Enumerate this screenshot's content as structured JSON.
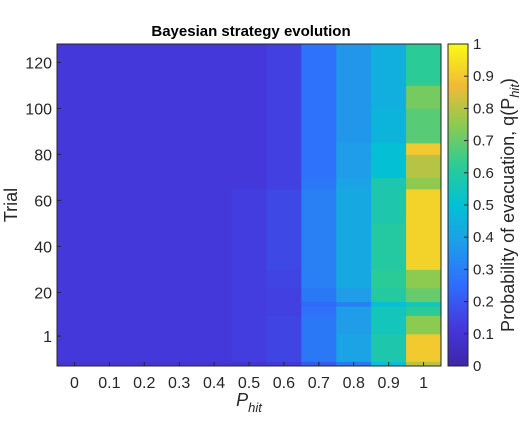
{
  "chart_data": {
    "type": "heatmap",
    "title": "Bayesian strategy evolution",
    "xlabel": "P",
    "xlabel_sub": "hit",
    "ylabel": "Trial",
    "colorbar_label": "Probability of evacuation, q(P",
    "colorbar_label_sub": "hit",
    "colorbar_label_close": ")",
    "colormap": "parula",
    "clim": [
      0,
      1
    ],
    "colorbar_ticks": [
      "0",
      "0.1",
      "0.2",
      "0.3",
      "0.4",
      "0.5",
      "0.6",
      "0.7",
      "0.8",
      "0.9",
      "1"
    ],
    "x_tick_labels": [
      "0",
      "0.1",
      "0.2",
      "0.3",
      "0.4",
      "0.5",
      "0.6",
      "0.7",
      "0.8",
      "0.9",
      "1"
    ],
    "y_tick_labels": [
      "1",
      "20",
      "40",
      "60",
      "80",
      "100",
      "120"
    ],
    "y_tick_values": [
      1,
      20,
      40,
      60,
      80,
      100,
      120
    ],
    "ylim": [
      -12,
      128
    ],
    "rows": [
      {
        "trial_from": -12,
        "trial_to": -10,
        "values": [
          0.1,
          0.1,
          0.1,
          0.1,
          0.1,
          0.1,
          0.12,
          0.2,
          0.28,
          0.5,
          0.8
        ]
      },
      {
        "trial_from": -10,
        "trial_to": 2,
        "values": [
          0.12,
          0.12,
          0.12,
          0.12,
          0.12,
          0.13,
          0.15,
          0.28,
          0.4,
          0.58,
          0.9
        ]
      },
      {
        "trial_from": 2,
        "trial_to": 10,
        "values": [
          0.12,
          0.12,
          0.12,
          0.12,
          0.12,
          0.13,
          0.15,
          0.28,
          0.38,
          0.55,
          0.75
        ]
      },
      {
        "trial_from": 10,
        "trial_to": 14,
        "values": [
          0.12,
          0.12,
          0.12,
          0.12,
          0.12,
          0.13,
          0.14,
          0.26,
          0.38,
          0.55,
          0.62
        ]
      },
      {
        "trial_from": 14,
        "trial_to": 16,
        "values": [
          0.12,
          0.12,
          0.12,
          0.12,
          0.12,
          0.13,
          0.14,
          0.24,
          0.3,
          0.5,
          0.55
        ]
      },
      {
        "trial_from": 16,
        "trial_to": 22,
        "values": [
          0.12,
          0.12,
          0.12,
          0.12,
          0.12,
          0.13,
          0.14,
          0.28,
          0.38,
          0.6,
          0.7
        ]
      },
      {
        "trial_from": 22,
        "trial_to": 30,
        "values": [
          0.12,
          0.12,
          0.12,
          0.12,
          0.12,
          0.13,
          0.15,
          0.3,
          0.42,
          0.62,
          0.75
        ]
      },
      {
        "trial_from": 30,
        "trial_to": 50,
        "values": [
          0.12,
          0.12,
          0.12,
          0.12,
          0.12,
          0.13,
          0.16,
          0.3,
          0.42,
          0.6,
          0.92
        ]
      },
      {
        "trial_from": 50,
        "trial_to": 65,
        "values": [
          0.12,
          0.12,
          0.12,
          0.12,
          0.12,
          0.13,
          0.16,
          0.3,
          0.42,
          0.58,
          0.92
        ]
      },
      {
        "trial_from": 65,
        "trial_to": 70,
        "values": [
          0.12,
          0.12,
          0.12,
          0.12,
          0.12,
          0.12,
          0.14,
          0.28,
          0.4,
          0.58,
          0.75
        ]
      },
      {
        "trial_from": 70,
        "trial_to": 80,
        "values": [
          0.12,
          0.12,
          0.12,
          0.12,
          0.12,
          0.12,
          0.14,
          0.26,
          0.38,
          0.5,
          0.8
        ]
      },
      {
        "trial_from": 80,
        "trial_to": 85,
        "values": [
          0.12,
          0.12,
          0.12,
          0.12,
          0.12,
          0.12,
          0.14,
          0.26,
          0.38,
          0.5,
          0.9
        ]
      },
      {
        "trial_from": 85,
        "trial_to": 100,
        "values": [
          0.12,
          0.12,
          0.12,
          0.12,
          0.12,
          0.12,
          0.14,
          0.26,
          0.36,
          0.46,
          0.68
        ]
      },
      {
        "trial_from": 100,
        "trial_to": 110,
        "values": [
          0.12,
          0.12,
          0.12,
          0.12,
          0.12,
          0.12,
          0.14,
          0.26,
          0.36,
          0.44,
          0.72
        ]
      },
      {
        "trial_from": 110,
        "trial_to": 128,
        "values": [
          0.12,
          0.12,
          0.12,
          0.12,
          0.12,
          0.12,
          0.14,
          0.26,
          0.36,
          0.44,
          0.62
        ]
      }
    ]
  }
}
